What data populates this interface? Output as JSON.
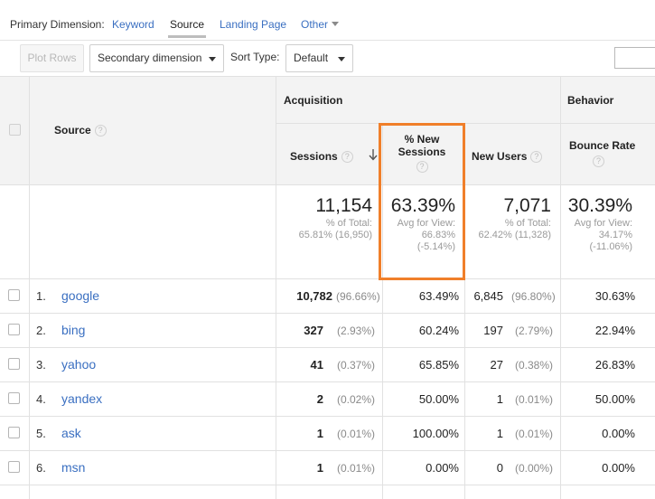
{
  "primary_dimension": {
    "label": "Primary Dimension:",
    "options": [
      "Keyword",
      "Source",
      "Landing Page",
      "Other"
    ],
    "active": "Source"
  },
  "toolbar": {
    "plot_rows": "Plot Rows",
    "secondary_dimension": "Secondary dimension",
    "sort_type_label": "Sort Type:",
    "sort_type_value": "Default"
  },
  "table": {
    "groups": {
      "acquisition": "Acquisition",
      "behavior": "Behavior"
    },
    "columns": {
      "source": "Source",
      "sessions": "Sessions",
      "new_sessions_line1": "% New",
      "new_sessions_line2": "Sessions",
      "new_users": "New Users",
      "bounce_rate": "Bounce Rate"
    },
    "totals": {
      "sessions": "11,154",
      "sessions_sub1": "% of Total:",
      "sessions_sub2": "65.81% (16,950)",
      "new_sessions": "63.39%",
      "new_sessions_sub1": "Avg for View:",
      "new_sessions_sub2": "66.83%",
      "new_sessions_sub3": "(-5.14%)",
      "new_users": "7,071",
      "new_users_sub1": "% of Total:",
      "new_users_sub2": "62.42% (11,328)",
      "bounce_rate": "30.39%",
      "bounce_rate_sub1": "Avg for View:",
      "bounce_rate_sub2": "34.17%",
      "bounce_rate_sub3": "(-11.06%)"
    },
    "rows": [
      {
        "idx": "1.",
        "source": "google",
        "sessions": "10,782",
        "sessions_pct": "(96.66%)",
        "new_sessions": "63.49%",
        "new_users": "6,845",
        "new_users_pct": "(96.80%)",
        "bounce_rate": "30.63%"
      },
      {
        "idx": "2.",
        "source": "bing",
        "sessions": "327",
        "sessions_pct": "(2.93%)",
        "new_sessions": "60.24%",
        "new_users": "197",
        "new_users_pct": "(2.79%)",
        "bounce_rate": "22.94%"
      },
      {
        "idx": "3.",
        "source": "yahoo",
        "sessions": "41",
        "sessions_pct": "(0.37%)",
        "new_sessions": "65.85%",
        "new_users": "27",
        "new_users_pct": "(0.38%)",
        "bounce_rate": "26.83%"
      },
      {
        "idx": "4.",
        "source": "yandex",
        "sessions": "2",
        "sessions_pct": "(0.02%)",
        "new_sessions": "50.00%",
        "new_users": "1",
        "new_users_pct": "(0.01%)",
        "bounce_rate": "50.00%"
      },
      {
        "idx": "5.",
        "source": "ask",
        "sessions": "1",
        "sessions_pct": "(0.01%)",
        "new_sessions": "100.00%",
        "new_users": "1",
        "new_users_pct": "(0.01%)",
        "bounce_rate": "0.00%"
      },
      {
        "idx": "6.",
        "source": "msn",
        "sessions": "1",
        "sessions_pct": "(0.01%)",
        "new_sessions": "0.00%",
        "new_users": "0",
        "new_users_pct": "(0.00%)",
        "bounce_rate": "0.00%"
      }
    ]
  },
  "colors": {
    "link": "#3a6fc1",
    "highlight": "#f07f2a"
  },
  "icons": {
    "help": "question-mark-icon",
    "sort": "arrow-down-icon"
  }
}
